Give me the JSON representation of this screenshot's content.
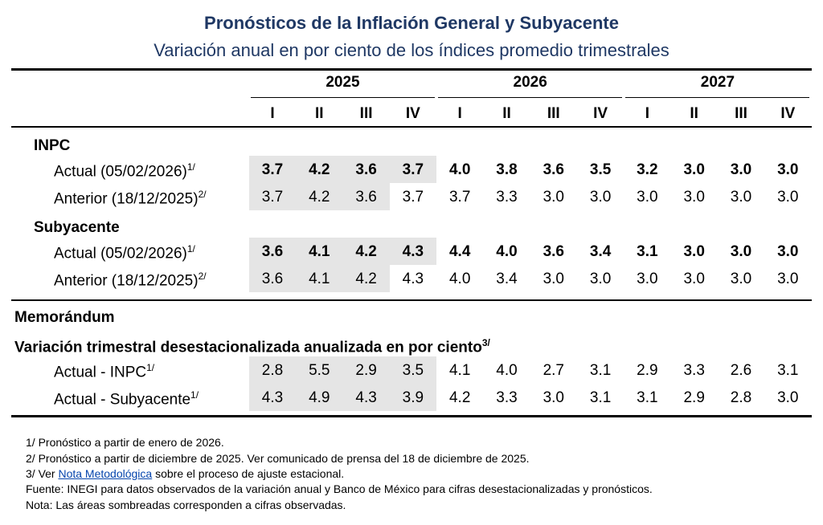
{
  "header": {
    "title": "Pronósticos de la Inflación General y Subyacente",
    "subtitle": "Variación anual en por ciento de los índices promedio trimestrales"
  },
  "table": {
    "years": [
      "2025",
      "2026",
      "2027"
    ],
    "quarters": [
      "I",
      "II",
      "III",
      "IV",
      "I",
      "II",
      "III",
      "IV",
      "I",
      "II",
      "III",
      "IV"
    ],
    "sections": [
      {
        "label": "INPC",
        "rows": [
          {
            "label": "Actual (05/02/2026)",
            "note": "1/",
            "bold": true,
            "shaded": 4,
            "values": [
              "3.7",
              "4.2",
              "3.6",
              "3.7",
              "4.0",
              "3.8",
              "3.6",
              "3.5",
              "3.2",
              "3.0",
              "3.0",
              "3.0"
            ]
          },
          {
            "label": "Anterior (18/12/2025)",
            "note": "2/",
            "bold": false,
            "shaded": 3,
            "values": [
              "3.7",
              "4.2",
              "3.6",
              "3.7",
              "3.7",
              "3.3",
              "3.0",
              "3.0",
              "3.0",
              "3.0",
              "3.0",
              "3.0"
            ]
          }
        ]
      },
      {
        "label": "Subyacente",
        "rows": [
          {
            "label": "Actual (05/02/2026)",
            "note": "1/",
            "bold": true,
            "shaded": 4,
            "values": [
              "3.6",
              "4.1",
              "4.2",
              "4.3",
              "4.4",
              "4.0",
              "3.6",
              "3.4",
              "3.1",
              "3.0",
              "3.0",
              "3.0"
            ]
          },
          {
            "label": "Anterior (18/12/2025)",
            "note": "2/",
            "bold": false,
            "shaded": 3,
            "values": [
              "3.6",
              "4.1",
              "4.2",
              "4.3",
              "4.0",
              "3.4",
              "3.0",
              "3.0",
              "3.0",
              "3.0",
              "3.0",
              "3.0"
            ]
          }
        ]
      }
    ],
    "memo": {
      "label": "Memorándum",
      "subtitle": "Variación trimestral desestacionalizada anualizada en por ciento",
      "note": "3/",
      "rows": [
        {
          "label": "Actual - INPC",
          "note": "1/",
          "bold": false,
          "shaded": 4,
          "values": [
            "2.8",
            "5.5",
            "2.9",
            "3.5",
            "4.1",
            "4.0",
            "2.7",
            "3.1",
            "2.9",
            "3.3",
            "2.6",
            "3.1"
          ]
        },
        {
          "label": "Actual - Subyacente",
          "note": "1/",
          "bold": false,
          "shaded": 4,
          "values": [
            "4.3",
            "4.9",
            "4.3",
            "3.9",
            "4.2",
            "3.3",
            "3.0",
            "3.1",
            "3.1",
            "2.9",
            "2.8",
            "3.0"
          ]
        }
      ]
    }
  },
  "footnotes": {
    "note1": "1/ Pronóstico a partir de enero de 2026.",
    "note2": "2/ Pronóstico a partir de diciembre de 2025. Ver comunicado de prensa del 18 de diciembre de 2025.",
    "note3_prefix": "3/ Ver ",
    "note3_link": "Nota Metodológica",
    "note3_suffix": " sobre el proceso de ajuste estacional.",
    "source": "Fuente: INEGI para datos observados de la variación anual y Banco de México para cifras desestacionalizadas y pronósticos.",
    "shading": "Nota: Las áreas sombreadas corresponden a cifras observadas."
  }
}
